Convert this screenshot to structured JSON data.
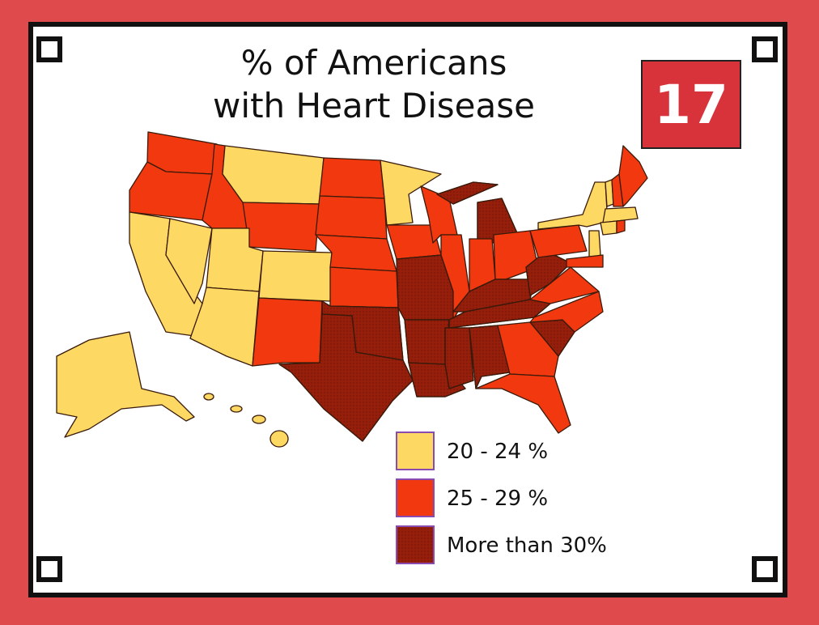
{
  "header": {
    "title_lines": [
      "% of Americans",
      "with Heart Disease"
    ],
    "card_number": "17"
  },
  "legend": [
    {
      "label": "20 - 24 %",
      "color": "#fdd963"
    },
    {
      "label": "25 - 29 %",
      "color": "#f2380f"
    },
    {
      "label": "More than 30%",
      "color": "#961f0c"
    }
  ]
}
